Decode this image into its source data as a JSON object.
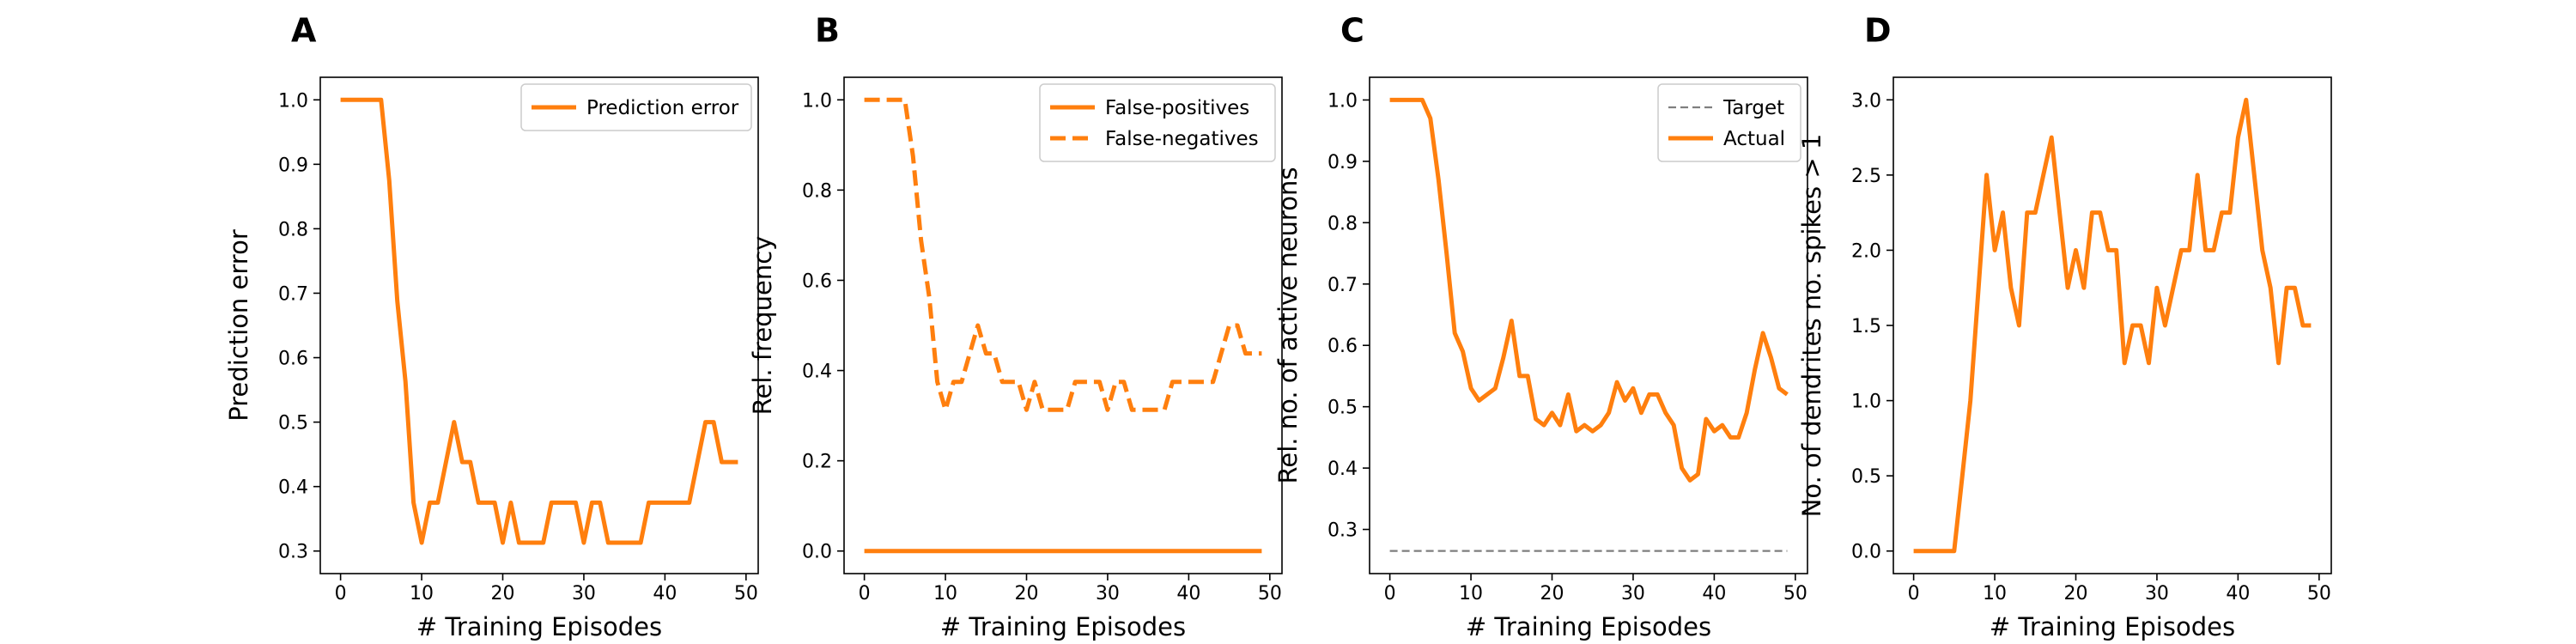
{
  "colors": {
    "series": "#ff7f0e",
    "target": "#7f7f7f",
    "legend_edge": "#cccccc"
  },
  "chart_data": [
    {
      "panel": "A",
      "type": "line",
      "xlabel": "# Training Episodes",
      "ylabel": "Prediction error",
      "xlim": [
        -2.5,
        51.5
      ],
      "ylim": [
        0.265,
        1.035
      ],
      "xticks": [
        0,
        10,
        20,
        30,
        40,
        50
      ],
      "yticks": [
        0.3,
        0.4,
        0.5,
        0.6,
        0.7,
        0.8,
        0.9,
        1.0
      ],
      "ytick_labels": [
        "0.3",
        "0.4",
        "0.5",
        "0.6",
        "0.7",
        "0.8",
        "0.9",
        "1.0"
      ],
      "legend_position": "top-right",
      "grid": false,
      "series": [
        {
          "name": "Prediction error",
          "style": "solid",
          "color": "#ff7f0e",
          "x": [
            0,
            1,
            2,
            3,
            4,
            5,
            6,
            7,
            8,
            9,
            10,
            11,
            12,
            13,
            14,
            15,
            16,
            17,
            18,
            19,
            20,
            21,
            22,
            23,
            24,
            25,
            26,
            27,
            28,
            29,
            30,
            31,
            32,
            33,
            34,
            35,
            36,
            37,
            38,
            39,
            40,
            41,
            42,
            43,
            44,
            45,
            46,
            47,
            48,
            49
          ],
          "values": [
            1.0,
            1.0,
            1.0,
            1.0,
            1.0,
            1.0,
            0.875,
            0.688,
            0.563,
            0.375,
            0.313,
            0.375,
            0.375,
            0.438,
            0.5,
            0.438,
            0.438,
            0.375,
            0.375,
            0.375,
            0.313,
            0.375,
            0.313,
            0.313,
            0.313,
            0.313,
            0.375,
            0.375,
            0.375,
            0.375,
            0.313,
            0.375,
            0.375,
            0.313,
            0.313,
            0.313,
            0.313,
            0.313,
            0.375,
            0.375,
            0.375,
            0.375,
            0.375,
            0.375,
            0.438,
            0.5,
            0.5,
            0.438,
            0.438,
            0.438
          ]
        }
      ]
    },
    {
      "panel": "B",
      "type": "line",
      "xlabel": "# Training Episodes",
      "ylabel": "Rel. frequency",
      "xlim": [
        -2.5,
        51.5
      ],
      "ylim": [
        -0.05,
        1.05
      ],
      "xticks": [
        0,
        10,
        20,
        30,
        40,
        50
      ],
      "yticks": [
        0.0,
        0.2,
        0.4,
        0.6,
        0.8,
        1.0
      ],
      "ytick_labels": [
        "0.0",
        "0.2",
        "0.4",
        "0.6",
        "0.8",
        "1.0"
      ],
      "legend_position": "top-right",
      "grid": false,
      "series": [
        {
          "name": "False-positives",
          "style": "solid",
          "color": "#ff7f0e",
          "x": [
            0,
            1,
            2,
            3,
            4,
            5,
            6,
            7,
            8,
            9,
            10,
            11,
            12,
            13,
            14,
            15,
            16,
            17,
            18,
            19,
            20,
            21,
            22,
            23,
            24,
            25,
            26,
            27,
            28,
            29,
            30,
            31,
            32,
            33,
            34,
            35,
            36,
            37,
            38,
            39,
            40,
            41,
            42,
            43,
            44,
            45,
            46,
            47,
            48,
            49
          ],
          "values": [
            0,
            0,
            0,
            0,
            0,
            0,
            0,
            0,
            0,
            0,
            0,
            0,
            0,
            0,
            0,
            0,
            0,
            0,
            0,
            0,
            0,
            0,
            0,
            0,
            0,
            0,
            0,
            0,
            0,
            0,
            0,
            0,
            0,
            0,
            0,
            0,
            0,
            0,
            0,
            0,
            0,
            0,
            0,
            0,
            0,
            0,
            0,
            0,
            0,
            0
          ]
        },
        {
          "name": "False-negatives",
          "style": "dashed",
          "color": "#ff7f0e",
          "x": [
            0,
            1,
            2,
            3,
            4,
            5,
            6,
            7,
            8,
            9,
            10,
            11,
            12,
            13,
            14,
            15,
            16,
            17,
            18,
            19,
            20,
            21,
            22,
            23,
            24,
            25,
            26,
            27,
            28,
            29,
            30,
            31,
            32,
            33,
            34,
            35,
            36,
            37,
            38,
            39,
            40,
            41,
            42,
            43,
            44,
            45,
            46,
            47,
            48,
            49
          ],
          "values": [
            1.0,
            1.0,
            1.0,
            1.0,
            1.0,
            1.0,
            0.875,
            0.688,
            0.563,
            0.375,
            0.313,
            0.375,
            0.375,
            0.438,
            0.5,
            0.438,
            0.438,
            0.375,
            0.375,
            0.375,
            0.313,
            0.375,
            0.313,
            0.313,
            0.313,
            0.313,
            0.375,
            0.375,
            0.375,
            0.375,
            0.313,
            0.375,
            0.375,
            0.313,
            0.313,
            0.313,
            0.313,
            0.313,
            0.375,
            0.375,
            0.375,
            0.375,
            0.375,
            0.375,
            0.438,
            0.5,
            0.5,
            0.438,
            0.438,
            0.438
          ]
        }
      ]
    },
    {
      "panel": "C",
      "type": "line",
      "xlabel": "# Training Episodes",
      "ylabel": "Rel. no. of active neurons",
      "xlim": [
        -2.5,
        51.5
      ],
      "ylim": [
        0.228,
        1.037
      ],
      "xticks": [
        0,
        10,
        20,
        30,
        40,
        50
      ],
      "yticks": [
        0.3,
        0.4,
        0.5,
        0.6,
        0.7,
        0.8,
        0.9,
        1.0
      ],
      "ytick_labels": [
        "0.3",
        "0.4",
        "0.5",
        "0.6",
        "0.7",
        "0.8",
        "0.9",
        "1.0"
      ],
      "legend_position": "top-right",
      "grid": false,
      "series": [
        {
          "name": "Target",
          "style": "dashed-thin",
          "color": "#7f7f7f",
          "x": [
            0,
            49
          ],
          "values": [
            0.265,
            0.265
          ]
        },
        {
          "name": "Actual",
          "style": "solid",
          "color": "#ff7f0e",
          "x": [
            0,
            1,
            2,
            3,
            4,
            5,
            6,
            7,
            8,
            9,
            10,
            11,
            12,
            13,
            14,
            15,
            16,
            17,
            18,
            19,
            20,
            21,
            22,
            23,
            24,
            25,
            26,
            27,
            28,
            29,
            30,
            31,
            32,
            33,
            34,
            35,
            36,
            37,
            38,
            39,
            40,
            41,
            42,
            43,
            44,
            45,
            46,
            47,
            48,
            49
          ],
          "values": [
            1.0,
            1.0,
            1.0,
            1.0,
            1.0,
            0.97,
            0.87,
            0.75,
            0.62,
            0.59,
            0.53,
            0.51,
            0.52,
            0.53,
            0.58,
            0.64,
            0.55,
            0.55,
            0.48,
            0.47,
            0.49,
            0.47,
            0.52,
            0.46,
            0.47,
            0.46,
            0.47,
            0.49,
            0.54,
            0.51,
            0.53,
            0.49,
            0.52,
            0.52,
            0.49,
            0.47,
            0.4,
            0.38,
            0.39,
            0.48,
            0.46,
            0.47,
            0.45,
            0.45,
            0.49,
            0.56,
            0.62,
            0.58,
            0.53,
            0.52
          ]
        }
      ]
    },
    {
      "panel": "D",
      "type": "line",
      "xlabel": "# Training Episodes",
      "ylabel": "No. of dendrites no. spikes > 1",
      "xlim": [
        -2.5,
        51.5
      ],
      "ylim": [
        -0.15,
        3.15
      ],
      "xticks": [
        0,
        10,
        20,
        30,
        40,
        50
      ],
      "yticks": [
        0.0,
        0.5,
        1.0,
        1.5,
        2.0,
        2.5,
        3.0
      ],
      "ytick_labels": [
        "0.0",
        "0.5",
        "1.0",
        "1.5",
        "2.0",
        "2.5",
        "3.0"
      ],
      "grid": false,
      "series": [
        {
          "style": "solid",
          "color": "#ff7f0e",
          "x": [
            0,
            1,
            2,
            3,
            4,
            5,
            6,
            7,
            8,
            9,
            10,
            11,
            12,
            13,
            14,
            15,
            16,
            17,
            18,
            19,
            20,
            21,
            22,
            23,
            24,
            25,
            26,
            27,
            28,
            29,
            30,
            31,
            32,
            33,
            34,
            35,
            36,
            37,
            38,
            39,
            40,
            41,
            42,
            43,
            44,
            45,
            46,
            47,
            48,
            49
          ],
          "values": [
            0,
            0,
            0,
            0,
            0,
            0,
            0.5,
            1.0,
            1.75,
            2.5,
            2.0,
            2.25,
            1.75,
            1.5,
            2.25,
            2.25,
            2.5,
            2.75,
            2.25,
            1.75,
            2.0,
            1.75,
            2.25,
            2.25,
            2.0,
            2.0,
            1.25,
            1.5,
            1.5,
            1.25,
            1.75,
            1.5,
            1.75,
            2.0,
            2.0,
            2.5,
            2.0,
            2.0,
            2.25,
            2.25,
            2.75,
            3.0,
            2.5,
            2.0,
            1.75,
            1.25,
            1.75,
            1.75,
            1.5,
            1.5
          ]
        }
      ]
    }
  ]
}
